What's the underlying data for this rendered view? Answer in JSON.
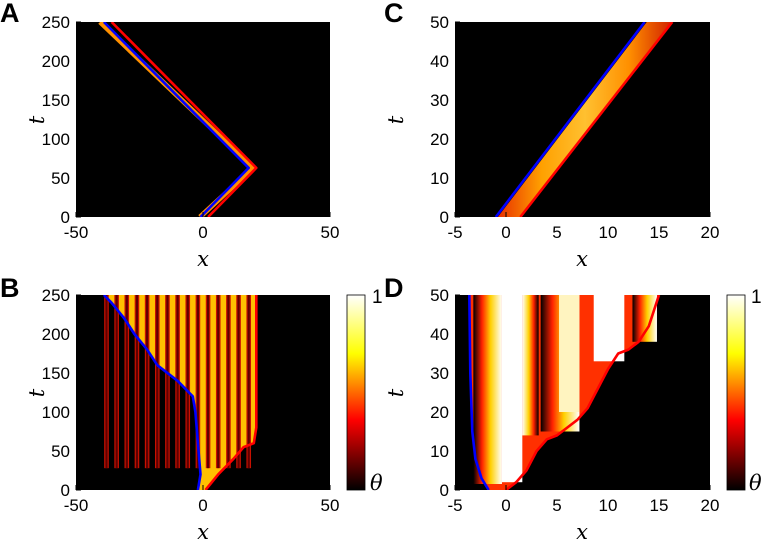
{
  "chart_data": [
    {
      "panel": "A",
      "type": "heatmap",
      "xlabel": "x",
      "ylabel": "t",
      "xlim": [
        -50,
        50
      ],
      "ylim": [
        0,
        250
      ],
      "xticks": [
        "-50",
        "0",
        "50"
      ],
      "yticks": [
        "0",
        "50",
        "100",
        "150",
        "200",
        "250"
      ],
      "background": "#000000",
      "series": [
        {
          "color": "#ff0000",
          "x": [
            2,
            21,
            -36
          ],
          "t": [
            0,
            63,
            250
          ]
        },
        {
          "color": "#0000ff",
          "x": [
            -1,
            18,
            -39
          ],
          "t": [
            0,
            63,
            250
          ]
        }
      ]
    },
    {
      "panel": "C",
      "type": "heatmap",
      "xlabel": "x",
      "ylabel": "t",
      "xlim": [
        -5,
        20
      ],
      "ylim": [
        0,
        50
      ],
      "xticks": [
        "-5",
        "0",
        "5",
        "10",
        "15",
        "20"
      ],
      "yticks": [
        "0",
        "10",
        "20",
        "30",
        "40",
        "50"
      ],
      "background": "#000000",
      "band": {
        "x_left": [
          -0.8,
          13.8
        ],
        "x_right": [
          1.4,
          16.3
        ],
        "t": [
          0,
          50
        ]
      },
      "series": [
        {
          "color": "#ff0000",
          "x": [
            1.4,
            16.3
          ],
          "t": [
            0,
            50
          ]
        },
        {
          "color": "#0000ff",
          "x": [
            -1.0,
            13.6
          ],
          "t": [
            0,
            50
          ]
        }
      ]
    },
    {
      "panel": "B",
      "type": "heatmap",
      "xlabel": "x",
      "ylabel": "t",
      "xlim": [
        -50,
        50
      ],
      "ylim": [
        0,
        250
      ],
      "xticks": [
        "-50",
        "0",
        "50"
      ],
      "yticks": [
        "0",
        "50",
        "100",
        "150",
        "200",
        "250"
      ],
      "background": "#000000",
      "stripe_period": 4,
      "series": [
        {
          "color": "#0000ff",
          "x": [
            -2,
            -1,
            -2,
            -3,
            -4,
            -10,
            -18,
            -22,
            -27,
            -31,
            -36,
            -39
          ],
          "t": [
            0,
            20,
            60,
            100,
            120,
            140,
            160,
            180,
            200,
            220,
            240,
            250
          ]
        },
        {
          "color": "#ff0000",
          "x": [
            1,
            6,
            12,
            16,
            20,
            21,
            21,
            21,
            21
          ],
          "t": [
            0,
            20,
            40,
            55,
            60,
            80,
            150,
            200,
            250
          ]
        }
      ]
    },
    {
      "panel": "D",
      "type": "heatmap",
      "xlabel": "x",
      "ylabel": "t",
      "xlim": [
        -5,
        20
      ],
      "ylim": [
        0,
        50
      ],
      "xticks": [
        "-5",
        "0",
        "5",
        "10",
        "15",
        "20"
      ],
      "yticks": [
        "0",
        "10",
        "20",
        "30",
        "40",
        "50"
      ],
      "background": "#000000",
      "series": [
        {
          "color": "#0000ff",
          "x": [
            -1.7,
            -2.4,
            -3.0,
            -3.3,
            -3.5,
            -3.6
          ],
          "t": [
            0,
            3,
            8,
            15,
            30,
            50
          ]
        },
        {
          "color": "#ff0000",
          "x": [
            0,
            1,
            2,
            3,
            4,
            5,
            6,
            7,
            8,
            9,
            10,
            11,
            12,
            13,
            14,
            15
          ],
          "t": [
            0,
            2,
            5,
            10,
            13,
            14,
            16,
            18,
            21,
            26,
            31,
            35,
            36,
            38,
            42,
            50
          ]
        }
      ]
    }
  ],
  "colorbars": [
    {
      "panel": "B",
      "max_label": "1",
      "min_label": "θ"
    },
    {
      "panel": "D",
      "max_label": "1",
      "min_label": "θ"
    }
  ]
}
